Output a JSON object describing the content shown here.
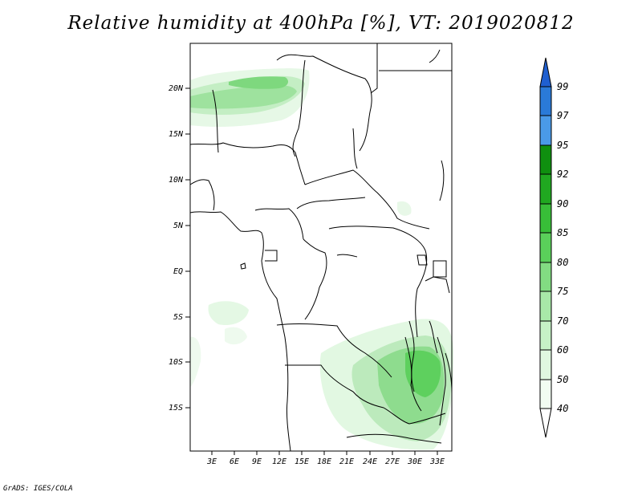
{
  "title": "Relative humidity at 400hPa [%], VT: 2019020812",
  "credit": "GrADS: IGES/COLA",
  "map": {
    "lat_labels": [
      "20N",
      "15N",
      "10N",
      "5N",
      "EQ",
      "5S",
      "10S",
      "15S"
    ],
    "lon_labels": [
      "3E",
      "6E",
      "9E",
      "12E",
      "15E",
      "18E",
      "21E",
      "24E",
      "27E",
      "30E",
      "33E"
    ]
  },
  "colorbar": {
    "labels": [
      "99",
      "97",
      "95",
      "92",
      "90",
      "85",
      "80",
      "75",
      "70",
      "60",
      "50",
      "40"
    ],
    "colors": [
      "#1f5fd0",
      "#2a7ad8",
      "#4a9ae8",
      "#0f8f0f",
      "#20a820",
      "#38be38",
      "#5ad05a",
      "#82dc82",
      "#a8e8a8",
      "#c6f2c6",
      "#e0f8e0",
      "#f2fcf2",
      "#ffffff"
    ]
  }
}
